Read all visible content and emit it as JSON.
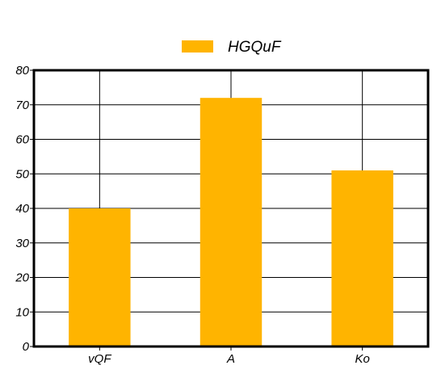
{
  "chart_data": {
    "type": "bar",
    "categories": [
      "vQF",
      "A",
      "Ko"
    ],
    "series": [
      {
        "name": "HGQuF",
        "values": [
          40,
          72,
          51
        ],
        "color": "#FFB400"
      }
    ],
    "ylim": [
      0,
      80
    ],
    "yticks": [
      0,
      10,
      20,
      30,
      40,
      50,
      60,
      70,
      80
    ],
    "grid": true,
    "legend_position": "top-center"
  }
}
